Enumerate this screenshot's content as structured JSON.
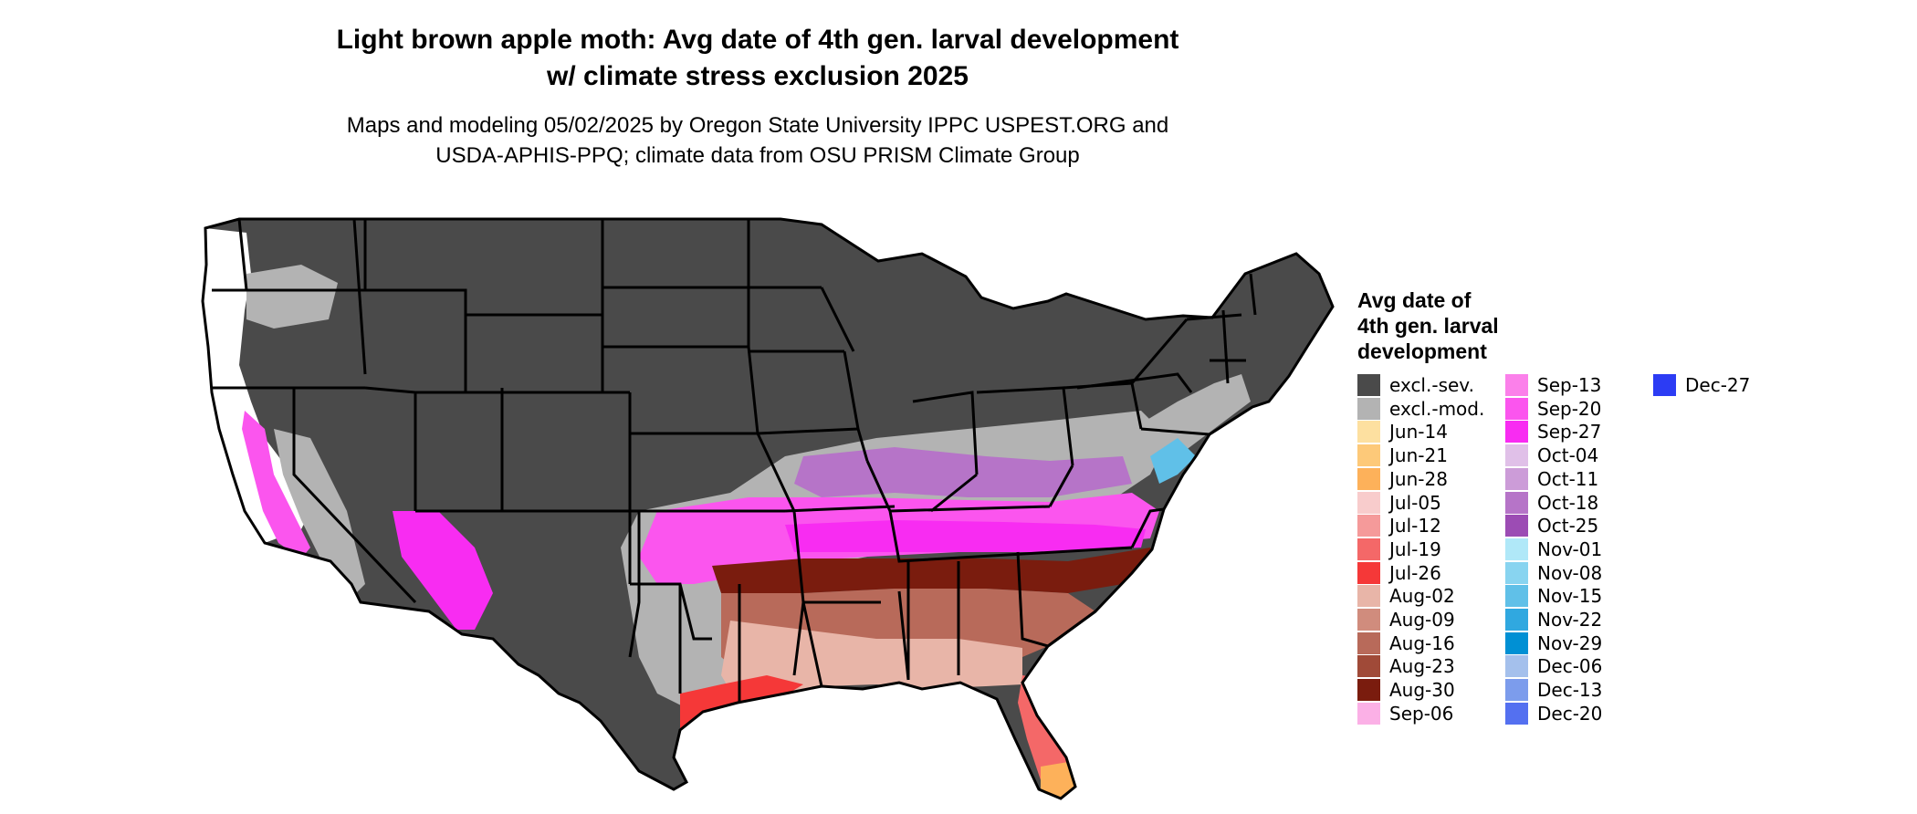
{
  "title_line1": "Light brown apple moth: Avg date of 4th gen. larval development",
  "title_line2": "w/ climate stress exclusion 2025",
  "subtitle_line1": "Maps and modeling 05/02/2025 by Oregon State University IPPC USPEST.ORG and",
  "subtitle_line2": "USDA-APHIS-PPQ; climate data from OSU PRISM Climate Group",
  "map": {
    "region": "contiguous-united-states",
    "outline_color": "#000000",
    "exclusion_severe_color": "#4a4a4a",
    "exclusion_moderate_color": "#b3b3b3"
  },
  "legend": {
    "title_lines": [
      "Avg date of",
      "4th gen. larval",
      "development"
    ],
    "items": [
      {
        "label": "excl.-sev.",
        "color": "#4a4a4a"
      },
      {
        "label": "excl.-mod.",
        "color": "#b3b3b3"
      },
      {
        "label": "Jun-14",
        "color": "#fde0a0"
      },
      {
        "label": "Jun-21",
        "color": "#fdc979"
      },
      {
        "label": "Jun-28",
        "color": "#fdb15a"
      },
      {
        "label": "Jul-05",
        "color": "#f8cccc"
      },
      {
        "label": "Jul-12",
        "color": "#f59a9a"
      },
      {
        "label": "Jul-19",
        "color": "#f46868"
      },
      {
        "label": "Jul-26",
        "color": "#f53838"
      },
      {
        "label": "Aug-02",
        "color": "#e8b5a8"
      },
      {
        "label": "Aug-09",
        "color": "#d08c7d"
      },
      {
        "label": "Aug-16",
        "color": "#b86a5a"
      },
      {
        "label": "Aug-23",
        "color": "#a04a38"
      },
      {
        "label": "Aug-30",
        "color": "#7a1c0e"
      },
      {
        "label": "Sep-06",
        "color": "#fbb0e6"
      },
      {
        "label": "Sep-13",
        "color": "#fb80ea"
      },
      {
        "label": "Sep-20",
        "color": "#fb55ee"
      },
      {
        "label": "Sep-27",
        "color": "#f82cf2"
      },
      {
        "label": "Oct-04",
        "color": "#e0c0e8"
      },
      {
        "label": "Oct-11",
        "color": "#cc9cd8"
      },
      {
        "label": "Oct-18",
        "color": "#b674c8"
      },
      {
        "label": "Oct-25",
        "color": "#9c4cb4"
      },
      {
        "label": "Nov-01",
        "color": "#b0e8f8"
      },
      {
        "label": "Nov-08",
        "color": "#88d4f0"
      },
      {
        "label": "Nov-15",
        "color": "#60c0e8"
      },
      {
        "label": "Nov-22",
        "color": "#30a8e0"
      },
      {
        "label": "Nov-29",
        "color": "#0090d4"
      },
      {
        "label": "Dec-06",
        "color": "#a4c0ec"
      },
      {
        "label": "Dec-13",
        "color": "#7c9cec"
      },
      {
        "label": "Dec-20",
        "color": "#5470f0"
      },
      {
        "label": "Dec-27",
        "color": "#2c3cf4"
      }
    ]
  }
}
